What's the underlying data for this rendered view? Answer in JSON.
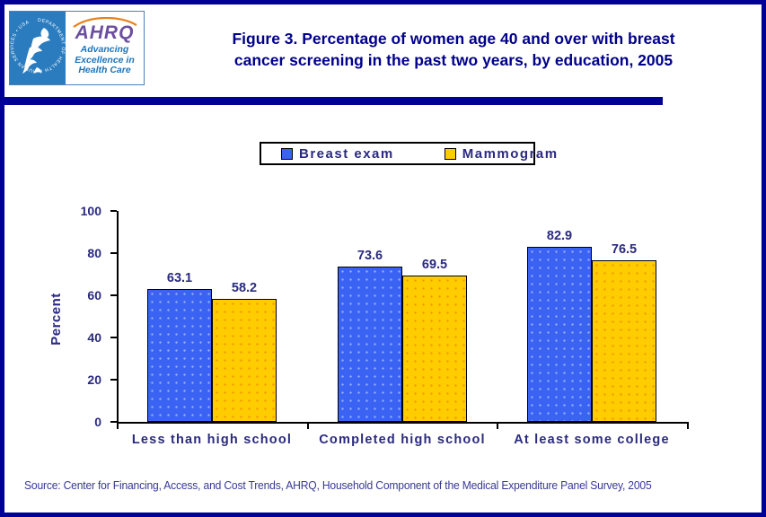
{
  "header": {
    "title_line1": "Figure 3. Percentage of women age 40 and over with breast",
    "title_line2": "cancer screening in the past two years, by education, 2005",
    "logo": {
      "ahrq_acronym": "AHRQ",
      "ahrq_tagline_line1": "Advancing",
      "ahrq_tagline_line2": "Excellence in",
      "ahrq_tagline_line3": "Health Care",
      "hhs_seal_text": "DEPARTMENT OF HEALTH & HUMAN SERVICES • USA"
    }
  },
  "legend": {
    "entries": [
      {
        "label": "Breast exam",
        "color": "#3a63f3"
      },
      {
        "label": "Mammogram",
        "color": "#ffcc00"
      }
    ]
  },
  "chart_data": {
    "type": "bar",
    "title": "Figure 3. Percentage of women age 40 and over with breast cancer screening in the past two years, by education, 2005",
    "categories": [
      "Less than high school",
      "Completed high school",
      "At least some college"
    ],
    "series": [
      {
        "name": "Breast exam",
        "color": "#3a63f3",
        "values": [
          63.1,
          73.6,
          82.9
        ]
      },
      {
        "name": "Mammogram",
        "color": "#ffcc00",
        "values": [
          58.2,
          69.5,
          76.5
        ]
      }
    ],
    "xlabel": "",
    "ylabel": "Percent",
    "ylim": [
      0,
      100
    ],
    "yticks": [
      0,
      20,
      40,
      60,
      80,
      100
    ],
    "grid": false,
    "legend_position": "top-center",
    "value_labels": true
  },
  "source_note": "Source: Center for Financing, Access, and Cost Trends, AHRQ,  Household Component of the Medical Expenditure Panel Survey, 2005",
  "colors": {
    "page_border": "#000099",
    "title_text": "#00008b",
    "label_text": "#2a2a7f",
    "source_text": "#38389a",
    "bar_border": "#000000",
    "hhs_blue": "#2b7cbe",
    "ahrq_purple": "#6c4f9f",
    "tagline_blue": "#1b75bc"
  }
}
